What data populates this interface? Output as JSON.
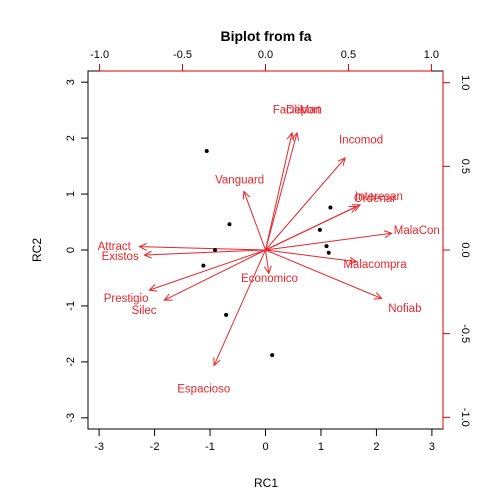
{
  "chart_data": {
    "type": "scatter",
    "title": "Biplot from fa",
    "xlabel": "RC1",
    "ylabel": "RC2",
    "xlim": [
      -3.2,
      3.2
    ],
    "ylim": [
      -3.2,
      3.2
    ],
    "xticks": [
      -3,
      -2,
      -1,
      0,
      1,
      2,
      3
    ],
    "yticks": [
      -3,
      -2,
      -1,
      0,
      1,
      2,
      3
    ],
    "xtick_labels": [
      "-3",
      "-2",
      "-1",
      "0",
      "1",
      "2",
      "3"
    ],
    "ytick_labels": [
      "-3",
      "-2",
      "-1",
      "0",
      "1",
      "2",
      "3"
    ],
    "loading_xlim": [
      -1.07,
      1.07
    ],
    "loading_ylim": [
      -1.07,
      1.07
    ],
    "top_ticks": [
      -1.0,
      -0.5,
      0.0,
      0.5,
      1.0
    ],
    "top_tick_labels": [
      "-1.0",
      "-0.5",
      "0.0",
      "0.5",
      "1.0"
    ],
    "right_ticks": [
      -1.0,
      -0.5,
      0.0,
      0.5,
      1.0
    ],
    "right_tick_labels": [
      "-1.0",
      "-0.5",
      "0.0",
      "0.5",
      "1.0"
    ],
    "grid": false,
    "colors": {
      "scores": "#000000",
      "loadings": "#e8262b",
      "secondary_axes": "#d60000"
    },
    "scores": [
      {
        "x": -1.06,
        "y": 1.77
      },
      {
        "x": -0.65,
        "y": 0.46
      },
      {
        "x": -0.91,
        "y": 0.0
      },
      {
        "x": -1.12,
        "y": -0.28
      },
      {
        "x": -0.71,
        "y": -1.16
      },
      {
        "x": 1.17,
        "y": 0.76
      },
      {
        "x": 0.98,
        "y": 0.36
      },
      {
        "x": 1.1,
        "y": 0.07
      },
      {
        "x": 1.14,
        "y": -0.05
      },
      {
        "x": 0.12,
        "y": -1.88
      }
    ],
    "loadings": [
      {
        "name": "Deport",
        "x": 0.19,
        "y": 0.7
      },
      {
        "name": "FaciliMan",
        "x": 0.16,
        "y": 0.7
      },
      {
        "name": "Incomod",
        "x": 0.48,
        "y": 0.55
      },
      {
        "name": "Vanguard",
        "x": -0.13,
        "y": 0.35
      },
      {
        "name": "Interesan",
        "x": 0.57,
        "y": 0.27
      },
      {
        "name": "Ordenar",
        "x": 0.55,
        "y": 0.26
      },
      {
        "name": "MalaCon",
        "x": 0.76,
        "y": 0.1
      },
      {
        "name": "Attract",
        "x": -0.76,
        "y": 0.02
      },
      {
        "name": "Existos",
        "x": -0.73,
        "y": -0.03
      },
      {
        "name": "Malacompra",
        "x": 0.55,
        "y": -0.07
      },
      {
        "name": "Economico",
        "x": 0.02,
        "y": -0.14
      },
      {
        "name": "Prestigio",
        "x": -0.7,
        "y": -0.24
      },
      {
        "name": "Silec",
        "x": -0.61,
        "y": -0.3
      },
      {
        "name": "Nofiab",
        "x": 0.7,
        "y": -0.29
      },
      {
        "name": "Espacioso",
        "x": -0.31,
        "y": -0.69
      }
    ]
  }
}
